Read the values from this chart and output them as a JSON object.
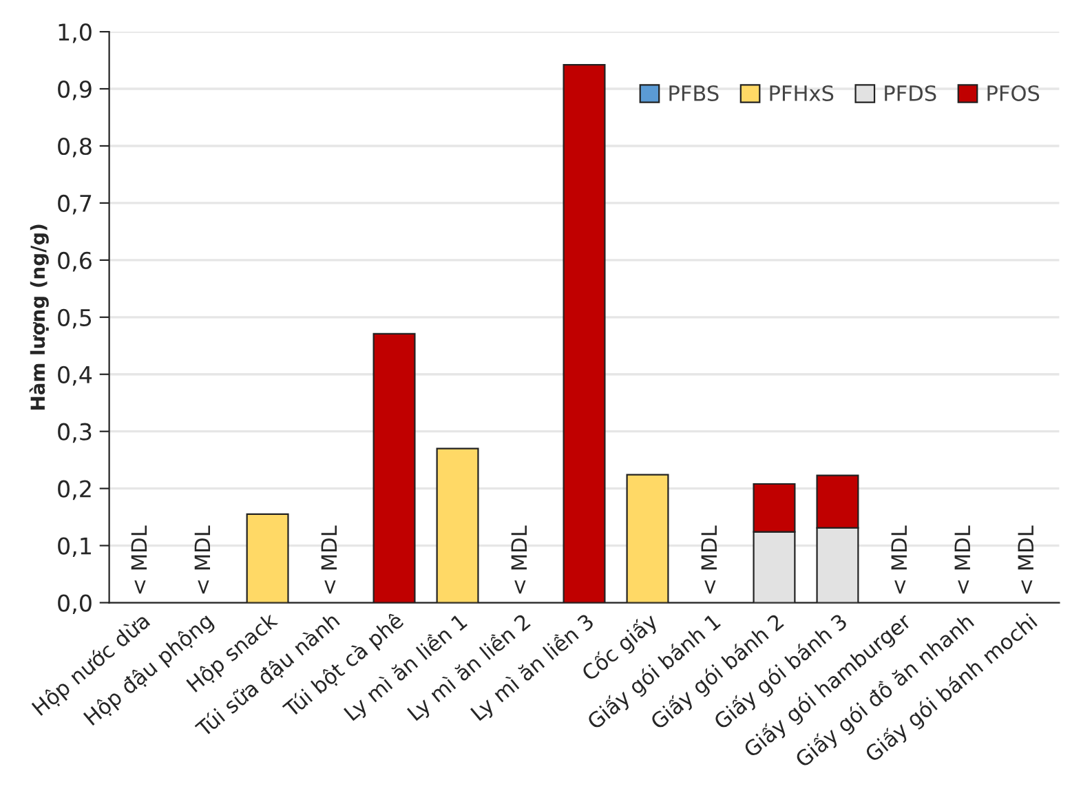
{
  "chart_data": {
    "type": "bar",
    "stacked": true,
    "ylabel": "Hàm lượng (ng/g)",
    "categories": [
      "Hộp nước dừa",
      "Hộp đậu phộng",
      "Hộp snack",
      "Túi sữa đậu nành",
      "Túi bột cà phê",
      "Ly mì ăn liền 1",
      "Ly mì ăn liền 2",
      "Ly mì ăn liền 3",
      "Cốc giấy",
      "Giấy gói bánh 1",
      "Giấy gói bánh 2",
      "Giấy gói bánh 3",
      "Giấy gói hamburger",
      "Giấy gói đồ ăn nhanh",
      "Giấy gói bánh mochi"
    ],
    "series": [
      {
        "name": "PFBS",
        "color": "#5b9bd5",
        "values": [
          null,
          null,
          null,
          null,
          null,
          null,
          null,
          null,
          null,
          null,
          null,
          null,
          null,
          null,
          null
        ]
      },
      {
        "name": "PFHxS",
        "color": "#ffd966",
        "values": [
          null,
          null,
          0.155,
          null,
          null,
          0.27,
          null,
          null,
          0.224,
          null,
          null,
          null,
          null,
          null,
          null
        ]
      },
      {
        "name": "PFDS",
        "color": "#e2e2e2",
        "values": [
          null,
          null,
          null,
          null,
          null,
          null,
          null,
          null,
          null,
          null,
          0.124,
          0.131,
          null,
          null,
          null
        ]
      },
      {
        "name": "PFOS",
        "color": "#c00000",
        "values": [
          null,
          null,
          null,
          null,
          0.471,
          null,
          null,
          0.942,
          null,
          null,
          0.084,
          0.092,
          null,
          null,
          null
        ]
      }
    ],
    "ylim": [
      0,
      1.0
    ],
    "yticks": [
      {
        "value": 0,
        "label": "0,0"
      },
      {
        "value": 0.1,
        "label": "0,1"
      },
      {
        "value": 0.2,
        "label": "0,2"
      },
      {
        "value": 0.3,
        "label": "0,3"
      },
      {
        "value": 0.4,
        "label": "0,4"
      },
      {
        "value": 0.5,
        "label": "0,5"
      },
      {
        "value": 0.6,
        "label": "0,6"
      },
      {
        "value": 0.7,
        "label": "0,7"
      },
      {
        "value": 0.8,
        "label": "0,8"
      },
      {
        "value": 0.9,
        "label": "0,9"
      },
      {
        "value": 1.0,
        "label": "1,0"
      }
    ],
    "grid": "y",
    "legend": "top right",
    "annotations": [
      "< MDL",
      "< MDL",
      "< MDL",
      "< MDL",
      "< MDL",
      "< MDL",
      "< MDL",
      "< MDL"
    ]
  }
}
